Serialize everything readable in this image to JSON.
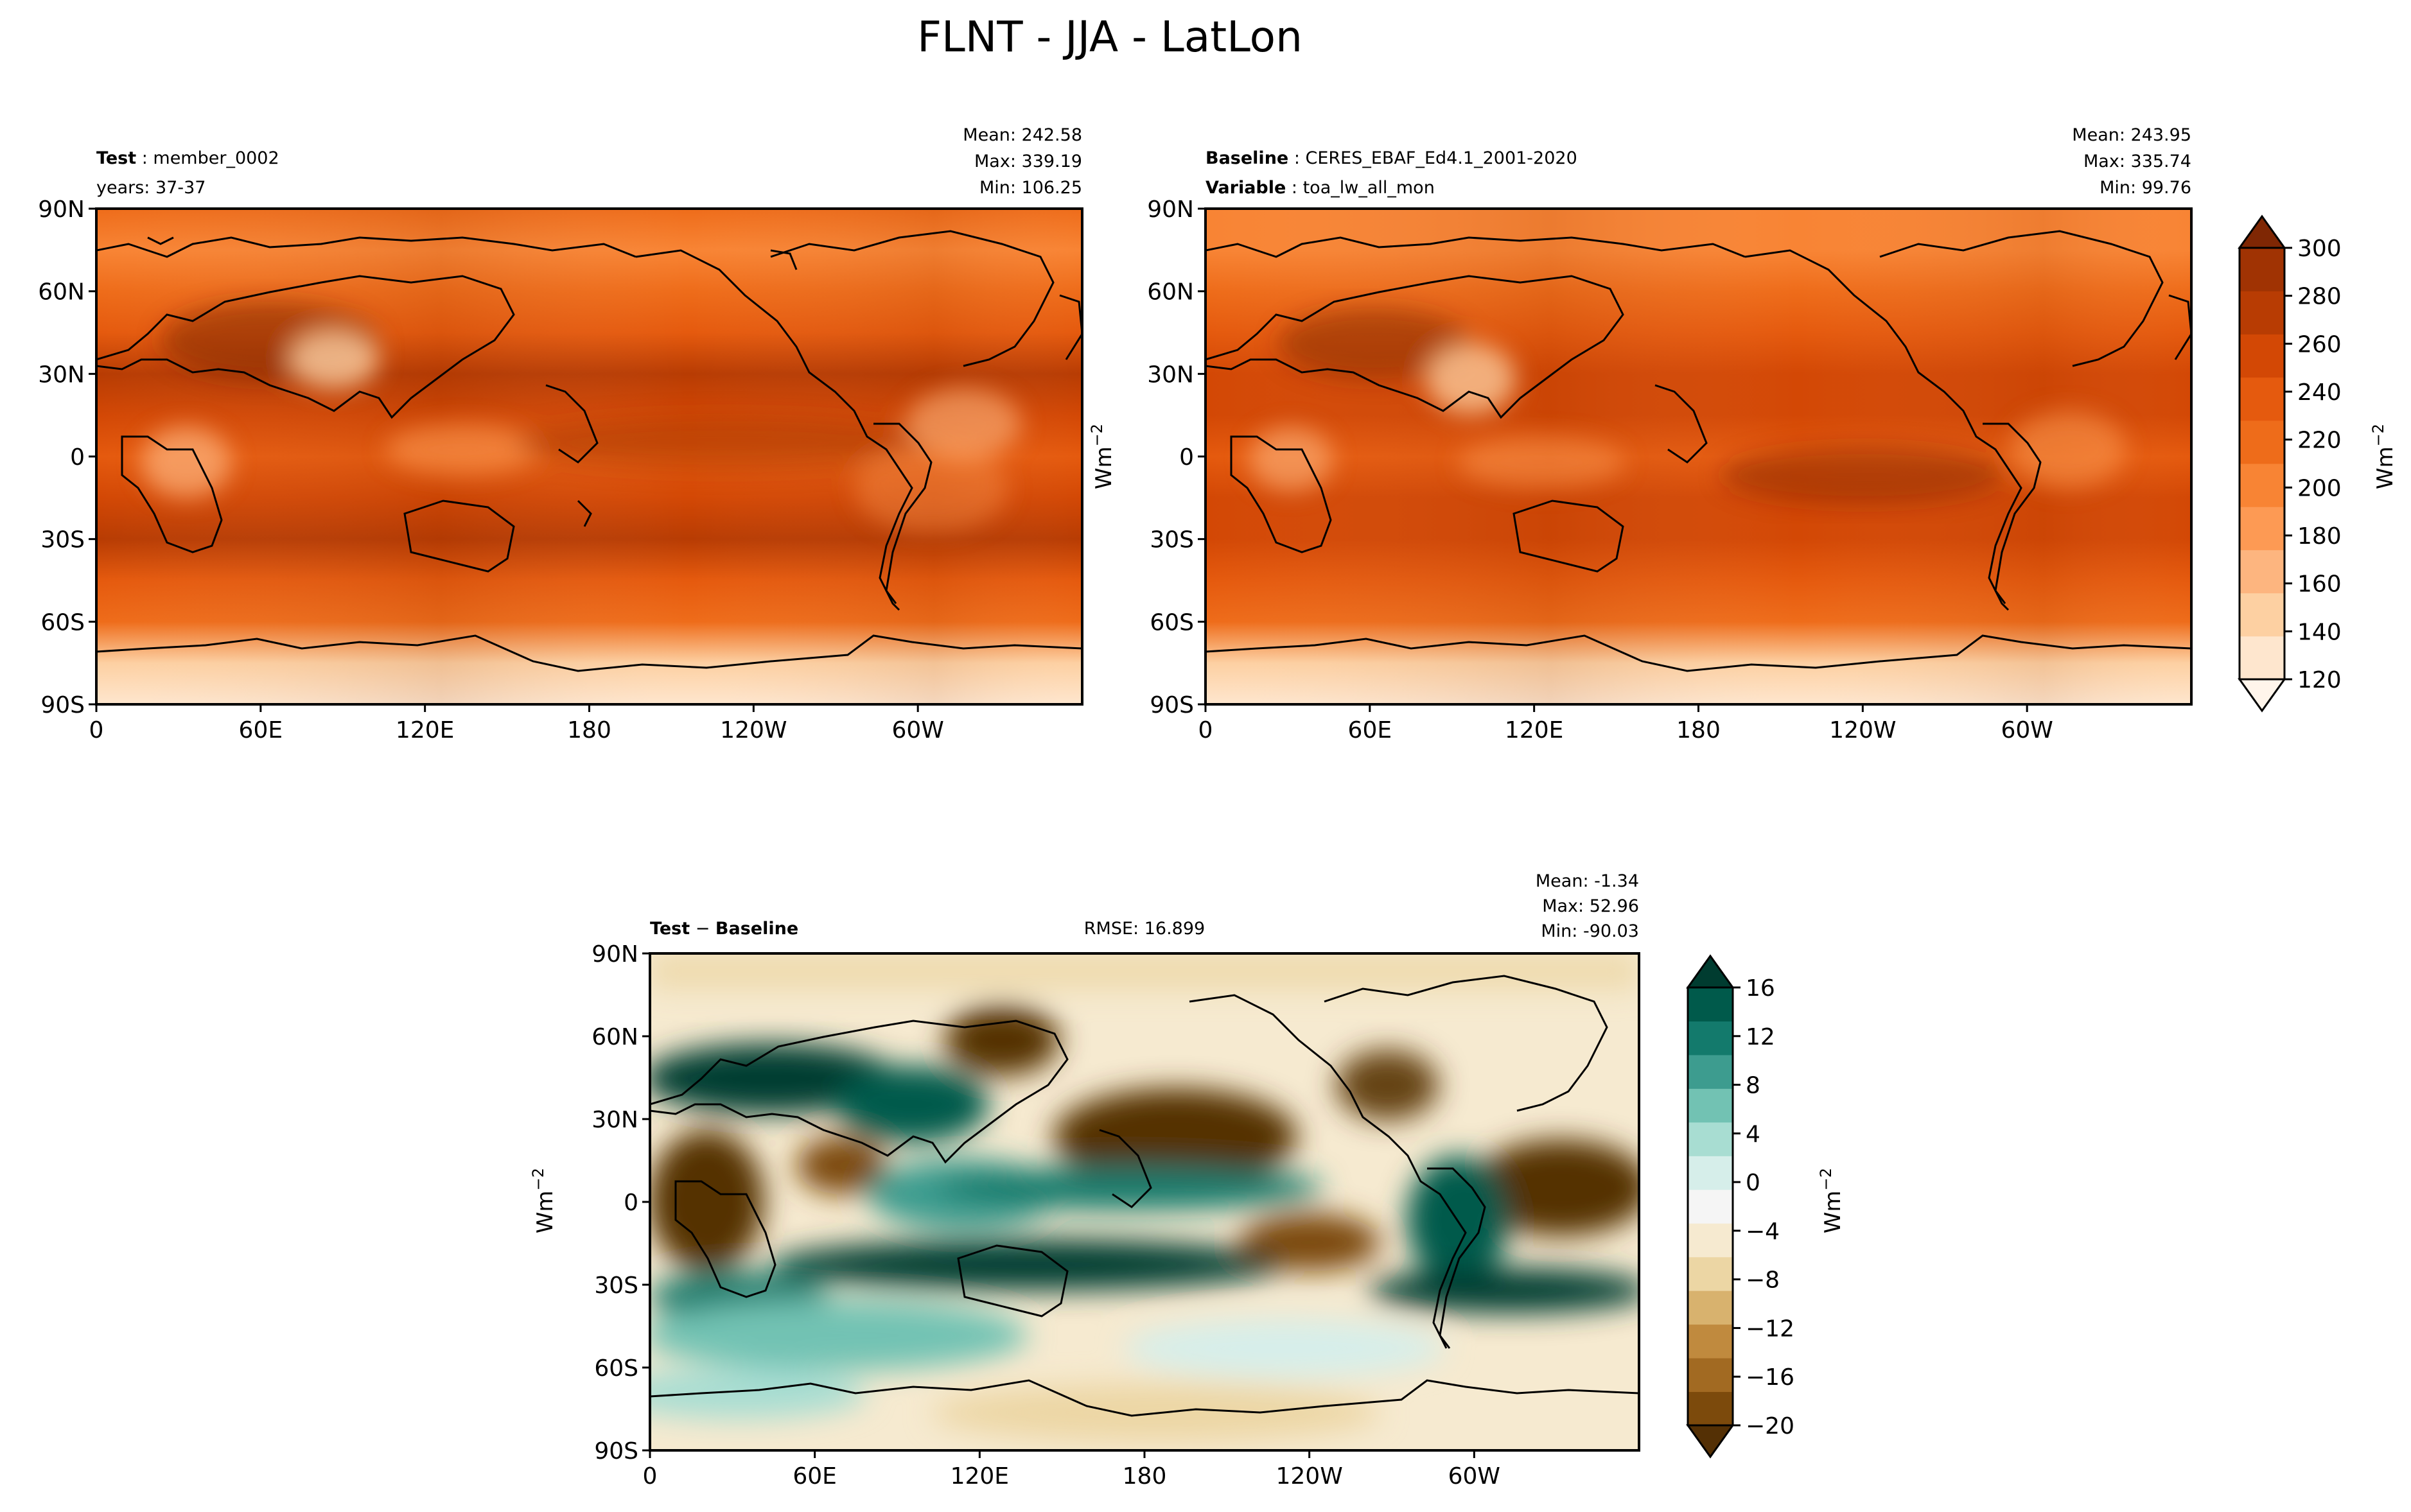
{
  "figure": {
    "title": "FLNT - JJA - LatLon"
  },
  "chart_data": [
    {
      "type": "heatmap",
      "panel": "test",
      "label_bold": "Test",
      "label_text": "member_0002",
      "sub_label": "years: 37-37",
      "stats": {
        "mean": "Mean: 242.58",
        "max": "Max: 339.19",
        "min": "Min: 106.25"
      },
      "ylabel": "",
      "xticks": [
        "0",
        "60E",
        "120E",
        "180",
        "120W",
        "60W"
      ],
      "yticks": [
        "90N",
        "60N",
        "30N",
        "0",
        "30S",
        "60S",
        "90S"
      ],
      "xlim": [
        0,
        360
      ],
      "ylim": [
        -90,
        90
      ],
      "zonal_profile": {
        "lat": [
          90,
          75,
          60,
          45,
          30,
          15,
          0,
          -15,
          -30,
          -45,
          -60,
          -75,
          -90
        ],
        "value": [
          210,
          205,
          225,
          245,
          265,
          250,
          235,
          260,
          265,
          235,
          215,
          150,
          125
        ]
      }
    },
    {
      "type": "heatmap",
      "panel": "baseline",
      "label_bold": "Baseline",
      "label_text": "CERES_EBAF_Ed4.1_2001-2020",
      "label2_bold": "Variable",
      "label2_text": "toa_lw_all_mon",
      "stats": {
        "mean": "Mean: 243.95",
        "max": "Max: 335.74",
        "min": "Min: 99.76"
      },
      "ylabel": "Wm",
      "ylabel_sup": "−2",
      "xticks": [
        "0",
        "60E",
        "120E",
        "180",
        "120W",
        "60W"
      ],
      "yticks": [
        "90N",
        "60N",
        "30N",
        "0",
        "30S",
        "60S",
        "90S"
      ],
      "xlim": [
        0,
        360
      ],
      "ylim": [
        -90,
        90
      ],
      "zonal_profile": {
        "lat": [
          90,
          75,
          60,
          45,
          30,
          15,
          0,
          -15,
          -30,
          -45,
          -60,
          -75,
          -90
        ],
        "value": [
          208,
          205,
          222,
          245,
          262,
          248,
          232,
          262,
          262,
          232,
          212,
          148,
          122
        ]
      }
    },
    {
      "type": "heatmap",
      "panel": "difference",
      "label_bold_a": "Test",
      "label_mid": " − ",
      "label_bold_b": "Baseline",
      "rmse": "RMSE: 16.899",
      "stats": {
        "mean": "Mean: -1.34",
        "max": "Max: 52.96",
        "min": "Min: -90.03"
      },
      "ylabel": "Wm",
      "ylabel_sup": "−2",
      "xticks": [
        "0",
        "60E",
        "120E",
        "180",
        "120W",
        "60W"
      ],
      "yticks": [
        "90N",
        "60N",
        "30N",
        "0",
        "30S",
        "60S",
        "90S"
      ],
      "xlim": [
        0,
        360
      ],
      "ylim": [
        -90,
        90
      ]
    }
  ],
  "colorbars": {
    "abs": {
      "label": "Wm",
      "label_sup": "−2",
      "ticks": [
        "120",
        "140",
        "160",
        "180",
        "200",
        "220",
        "240",
        "260",
        "280",
        "300"
      ],
      "colors": [
        "#fff5eb",
        "#fee6ce",
        "#fdd0a2",
        "#fdb57f",
        "#fd9a54",
        "#f88434",
        "#ee6c1a",
        "#e55a0e",
        "#d34805",
        "#b83c03",
        "#a03303",
        "#7f2704"
      ]
    },
    "diff": {
      "label": "Wm",
      "label_sup": "−2",
      "ticks": [
        "−20",
        "−16",
        "−12",
        "−8",
        "−4",
        "0",
        "4",
        "8",
        "12",
        "16"
      ],
      "colors": [
        "#543005",
        "#7c4a0c",
        "#a26a22",
        "#c08a3e",
        "#d8b26e",
        "#ecd6a4",
        "#f6ead0",
        "#f5f5f5",
        "#d6eeea",
        "#a8ddd2",
        "#72c2b3",
        "#3d9c8f",
        "#137a6c",
        "#005a4b",
        "#003c30"
      ]
    }
  }
}
